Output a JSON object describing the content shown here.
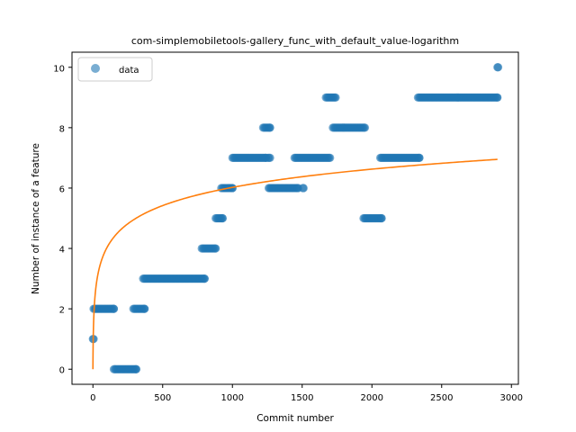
{
  "chart_data": {
    "type": "scatter",
    "title": "com-simplemobiletools-gallery_func_with_default_value-logarithm",
    "xlabel": "Commit number",
    "ylabel": "Number of instance of a feature",
    "xlim": [
      -150,
      3050
    ],
    "ylim": [
      -0.5,
      10.5
    ],
    "xticks": [
      0,
      500,
      1000,
      1500,
      2000,
      2500,
      3000
    ],
    "yticks": [
      0,
      2,
      4,
      6,
      8,
      10
    ],
    "grid": false,
    "legend": {
      "placement": "top-left",
      "entries": [
        "data"
      ]
    },
    "colors": {
      "data": "#1f77b4",
      "fit": "#ff7f0e"
    },
    "series": [
      {
        "name": "data",
        "kind": "scatter",
        "segments": [
          {
            "x_start": 0,
            "x_end": 5,
            "y": 1
          },
          {
            "x_start": 5,
            "x_end": 150,
            "y": 2
          },
          {
            "x_start": 150,
            "x_end": 310,
            "y": 0
          },
          {
            "x_start": 290,
            "x_end": 370,
            "y": 2
          },
          {
            "x_start": 360,
            "x_end": 800,
            "y": 3
          },
          {
            "x_start": 780,
            "x_end": 880,
            "y": 4
          },
          {
            "x_start": 880,
            "x_end": 930,
            "y": 5
          },
          {
            "x_start": 920,
            "x_end": 1000,
            "y": 6
          },
          {
            "x_start": 1000,
            "x_end": 1240,
            "y": 7
          },
          {
            "x_start": 1220,
            "x_end": 1270,
            "y": 8
          },
          {
            "x_start": 1255,
            "x_end": 1270,
            "y": 7
          },
          {
            "x_start": 1260,
            "x_end": 1470,
            "y": 6
          },
          {
            "x_start": 1445,
            "x_end": 1700,
            "y": 7
          },
          {
            "x_start": 1505,
            "x_end": 1510,
            "y": 6
          },
          {
            "x_start": 1670,
            "x_end": 1740,
            "y": 9
          },
          {
            "x_start": 1720,
            "x_end": 1950,
            "y": 8
          },
          {
            "x_start": 1940,
            "x_end": 2070,
            "y": 5
          },
          {
            "x_start": 2060,
            "x_end": 2340,
            "y": 7
          },
          {
            "x_start": 2330,
            "x_end": 2900,
            "y": 9
          },
          {
            "x_start": 2900,
            "x_end": 2905,
            "y": 10
          }
        ]
      },
      {
        "name": "fit",
        "kind": "line",
        "model": "logarithmic",
        "x_range": [
          0,
          2900
        ],
        "y_at_start": 0,
        "y_at_end": 6.95
      }
    ]
  }
}
